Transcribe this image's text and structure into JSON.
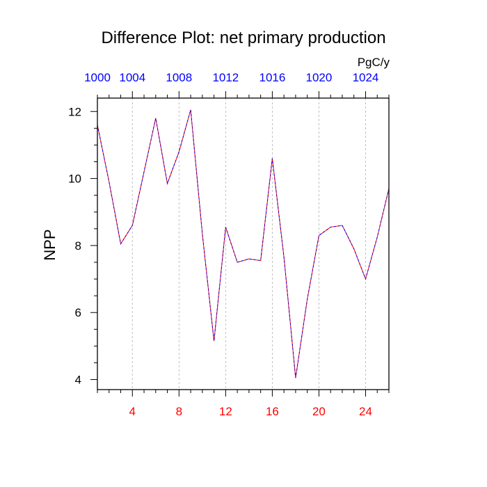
{
  "chart_data": {
    "type": "line",
    "title": "Difference Plot: net primary production",
    "ylabel": "NPP",
    "units_label": "PgC/y",
    "x_range": [
      1,
      26
    ],
    "ylim": [
      3.7,
      12.4
    ],
    "x_ticks_bottom": [
      4,
      8,
      12,
      16,
      20,
      24
    ],
    "x_ticks_bottom_color": "#ff0000",
    "x_ticks_top": [
      {
        "x": 1,
        "label": "1000"
      },
      {
        "x": 4,
        "label": "1004"
      },
      {
        "x": 8,
        "label": "1008"
      },
      {
        "x": 12,
        "label": "1012"
      },
      {
        "x": 16,
        "label": "1016"
      },
      {
        "x": 20,
        "label": "1020"
      },
      {
        "x": 24,
        "label": "1024"
      }
    ],
    "x_ticks_top_color": "#0000ff",
    "y_ticks": [
      4,
      6,
      8,
      10,
      12
    ],
    "grid": "vertical dashed at major x ticks",
    "series": [
      {
        "line_color": "#ff0000",
        "dash_color": "#0000ff",
        "x": [
          1,
          2,
          3,
          4,
          5,
          6,
          7,
          8,
          9,
          10,
          11,
          12,
          13,
          14,
          15,
          16,
          17,
          18,
          19,
          20,
          21,
          22,
          23,
          24,
          25,
          26
        ],
        "values": [
          11.6,
          9.9,
          8.05,
          8.6,
          10.2,
          11.8,
          9.85,
          10.8,
          12.05,
          8.35,
          5.15,
          8.55,
          7.5,
          7.6,
          7.55,
          10.6,
          7.65,
          4.05,
          6.4,
          8.3,
          8.55,
          8.6,
          7.9,
          7.0,
          8.25,
          9.7
        ]
      }
    ]
  }
}
